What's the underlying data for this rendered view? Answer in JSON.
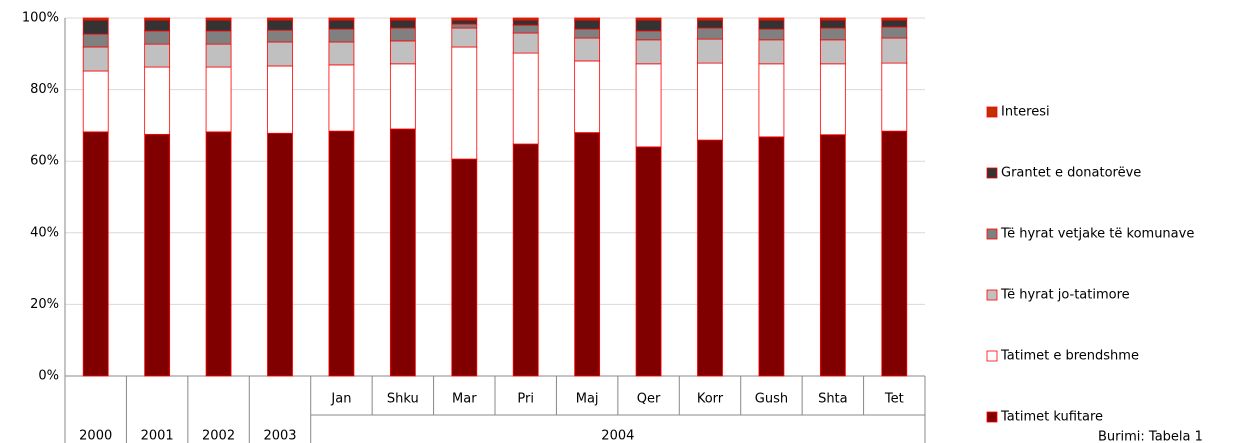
{
  "chart_data": {
    "type": "stacked_bar",
    "categories": [
      null,
      null,
      null,
      null,
      "Jan",
      "Shku",
      "Mar",
      "Pri",
      "Maj",
      "Qer",
      "Korr",
      "Gush",
      "Shta",
      "Tet"
    ],
    "category_groups": [
      "2000",
      "2001",
      "2002",
      "2003",
      "2004",
      null,
      null,
      null,
      null,
      null,
      null,
      null,
      null,
      null
    ],
    "series": [
      {
        "name": "Tatimet kufitare",
        "color": "#800000",
        "values": [
          68.2,
          67.5,
          68.2,
          67.8,
          68.4,
          69,
          60.6,
          64.8,
          68,
          64,
          65.9,
          66.8,
          67.4,
          68.4
        ]
      },
      {
        "name": "Tatimet e brendshme",
        "color": "#ffffff",
        "values": [
          17,
          18.8,
          18.1,
          18.8,
          18.5,
          18.2,
          31.3,
          25.4,
          20,
          23.2,
          21.5,
          20.4,
          19.8,
          19
        ]
      },
      {
        "name": "Të hyrat jo-tatimore",
        "color": "#c0c0c0",
        "values": [
          6.7,
          6.4,
          6.4,
          6.7,
          6.4,
          6.4,
          5.3,
          5.6,
          6.4,
          6.7,
          6.7,
          6.7,
          6.7,
          7
        ]
      },
      {
        "name": "Të hyrat vetjake të komunave",
        "color": "#808080",
        "values": [
          3.6,
          3.7,
          3.7,
          3.3,
          3.6,
          3.6,
          1.1,
          2.2,
          2.5,
          2.5,
          3.1,
          3,
          3.3,
          3.1
        ]
      },
      {
        "name": "Grantet e donatorëve",
        "color": "#333333",
        "values": [
          3.9,
          3,
          3,
          2.8,
          2.5,
          2.2,
          1.1,
          1.4,
          2.5,
          3,
          2.2,
          2.5,
          2.2,
          1.9
        ]
      },
      {
        "name": "Interesi",
        "color": "#c03000",
        "values": [
          0.6,
          0.6,
          0.6,
          0.6,
          0.6,
          0.6,
          0.6,
          0.6,
          0.6,
          0.6,
          0.6,
          0.6,
          0.6,
          0.6
        ]
      }
    ],
    "edge_color": "#ff0000",
    "ylim": [
      0,
      100
    ],
    "yticks": [
      {
        "value": 0,
        "label": "0%"
      },
      {
        "value": 20,
        "label": "20%"
      },
      {
        "value": 40,
        "label": "40%"
      },
      {
        "value": 60,
        "label": "60%"
      },
      {
        "value": 80,
        "label": "80%"
      },
      {
        "value": 100,
        "label": "100%"
      }
    ],
    "grid": true,
    "legend": "right",
    "note": "Burimi: Tabela 1"
  }
}
